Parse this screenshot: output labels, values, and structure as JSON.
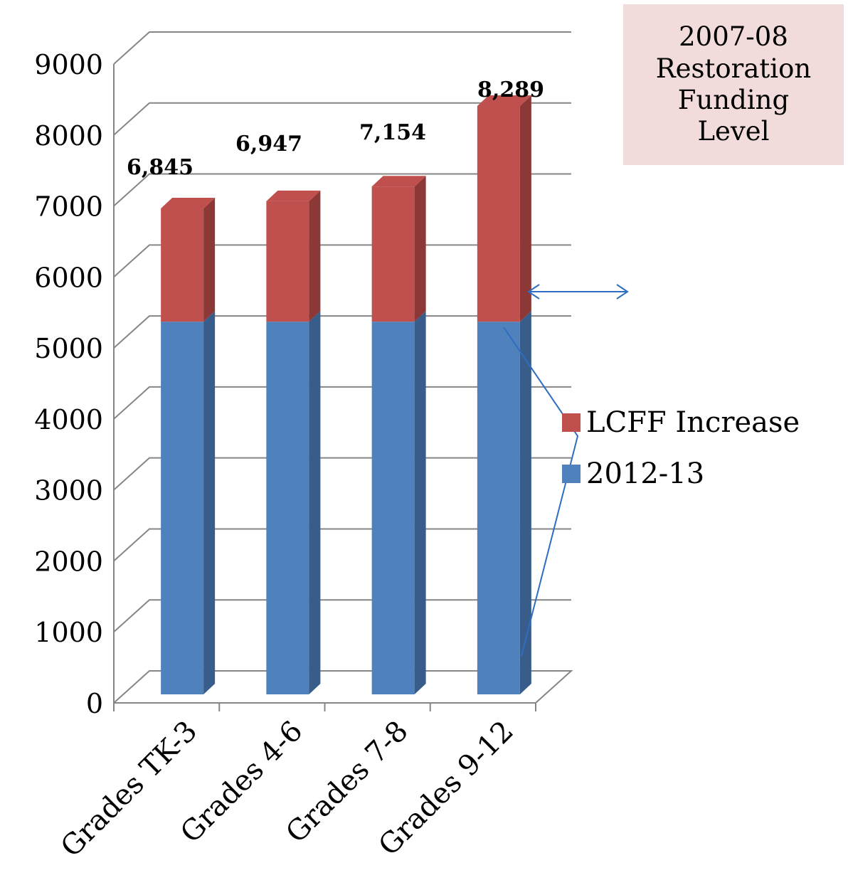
{
  "callout": {
    "lines": [
      "2007-08",
      "Restoration",
      "Funding",
      "Level"
    ]
  },
  "legend": [
    {
      "label": "LCFF Increase",
      "color": "#c0504d"
    },
    {
      "label": "2012-13",
      "color": "#4f81bd"
    }
  ],
  "chart_data": {
    "type": "bar",
    "stacked": true,
    "style": "3d-column",
    "categories": [
      "Grades TK-3",
      "Grades 4-6",
      "Grades 7-8",
      "Grades 9-12"
    ],
    "series": [
      {
        "name": "2012-13",
        "values": [
          5250,
          5250,
          5250,
          5250
        ],
        "color": "#4f81bd",
        "side_color": "#385d8a"
      },
      {
        "name": "LCFF Increase",
        "values": [
          1595,
          1697,
          1904,
          3039
        ],
        "color": "#c0504d",
        "side_color": "#8c3836"
      }
    ],
    "totals_labels": [
      "6,845",
      "6,947",
      "7,154",
      "8,289"
    ],
    "ylim": [
      0,
      9000
    ],
    "yticks": [
      "0",
      "1000",
      "2000",
      "3000",
      "4000",
      "5000",
      "6000",
      "7000",
      "8000",
      "9000"
    ],
    "grid": true,
    "legend_position": "right",
    "annotation_color": "#2e6ec0"
  }
}
